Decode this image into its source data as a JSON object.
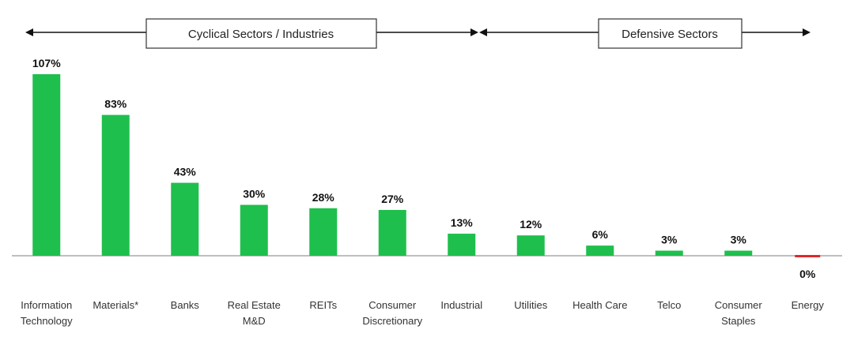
{
  "header": {
    "cyclical_label": "Cyclical Sectors / Industries",
    "defensive_label": "Defensive Sectors"
  },
  "chart_data": {
    "type": "bar",
    "title": "",
    "xlabel": "",
    "ylabel": "",
    "categories": [
      [
        "Information",
        "Technology"
      ],
      [
        "Materials*"
      ],
      [
        "Banks"
      ],
      [
        "Real Estate",
        "M&D"
      ],
      [
        "REITs"
      ],
      [
        "Consumer",
        "Discretionary"
      ],
      [
        "Industrial"
      ],
      [
        "Utilities"
      ],
      [
        "Health Care"
      ],
      [
        "Telco"
      ],
      [
        "Consumer",
        "Staples"
      ],
      [
        "Energy"
      ]
    ],
    "values": [
      107,
      83,
      43,
      30,
      28,
      27,
      13,
      12,
      6,
      3,
      3,
      0
    ],
    "value_labels": [
      "107%",
      "83%",
      "43%",
      "30%",
      "28%",
      "27%",
      "13%",
      "12%",
      "6%",
      "3%",
      "3%",
      "0%"
    ],
    "groups": [
      {
        "name": "Cyclical Sectors / Industries",
        "categories": 7
      },
      {
        "name": "Defensive Sectors",
        "categories": 5
      }
    ],
    "ylim": [
      0,
      107
    ],
    "grid": false,
    "colors": {
      "bar": "#1fbf4d",
      "zero_bar": "#e0282a",
      "axis": "#999999"
    }
  }
}
